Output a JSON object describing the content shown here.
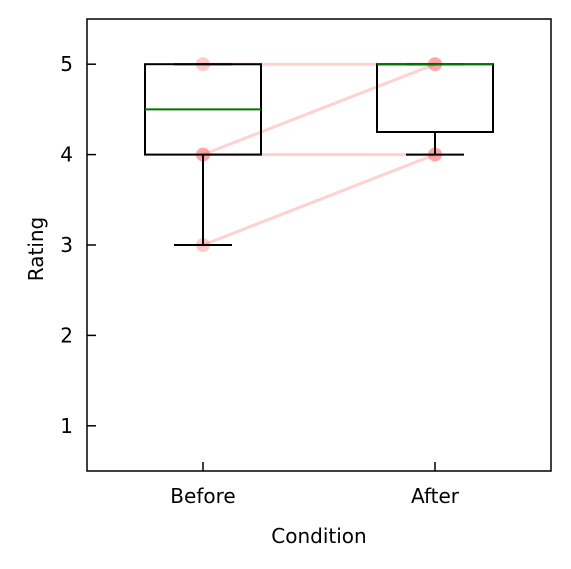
{
  "chart_data": {
    "type": "box",
    "xlabel": "Condition",
    "ylabel": "Rating",
    "categories": [
      "Before",
      "After"
    ],
    "ylim": [
      0.5,
      5.5
    ],
    "yticks": [
      1,
      2,
      3,
      4,
      5
    ],
    "grid": false,
    "boxes": [
      {
        "category": "Before",
        "whisker_low": 3,
        "q1": 4,
        "median": 4.5,
        "q3": 5,
        "whisker_high": 5
      },
      {
        "category": "After",
        "whisker_low": 4,
        "q1": 4.25,
        "median": 5,
        "q3": 5,
        "whisker_high": 5
      }
    ],
    "paired_points": [
      {
        "before": 5,
        "after": 5
      },
      {
        "before": 4,
        "after": 5
      },
      {
        "before": 4,
        "after": 4
      },
      {
        "before": 3,
        "after": 4
      }
    ],
    "colors": {
      "box": "#000000",
      "median": "#007700",
      "points": "#ff6666",
      "pair_lines": "#ff9999"
    }
  }
}
